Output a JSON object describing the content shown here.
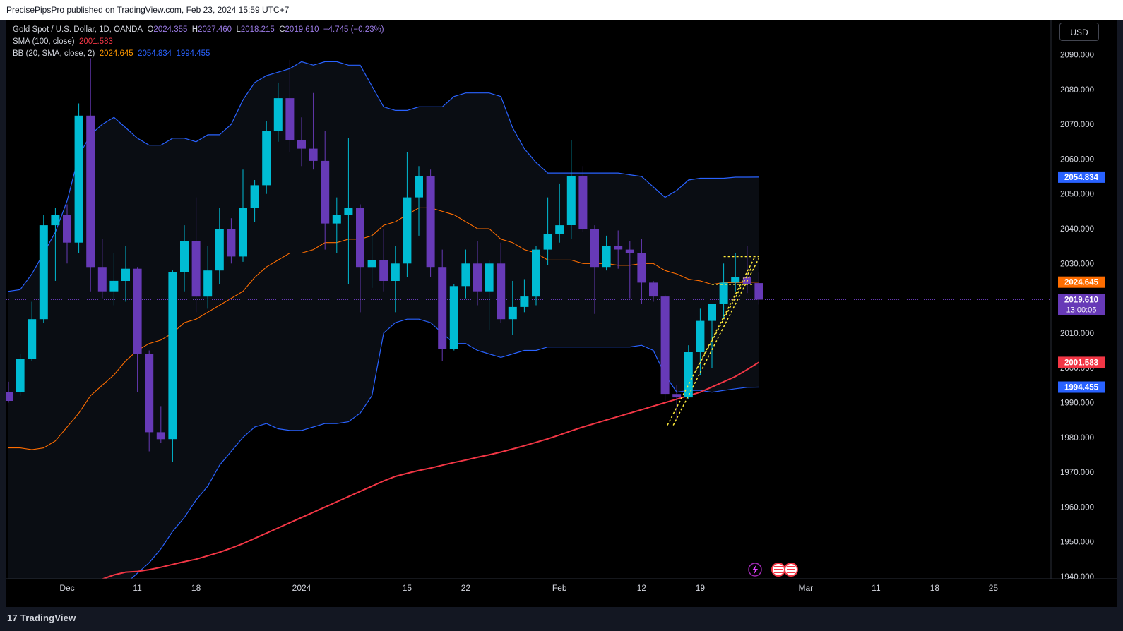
{
  "header": {
    "published": "PrecisePipsPro published on TradingView.com, Feb 23, 2024 15:59 UTC+7"
  },
  "legend": {
    "symbol": "Gold Spot / U.S. Dollar, 1D, OANDA",
    "open_label": "O",
    "open": "2024.355",
    "high_label": "H",
    "high": "2027.460",
    "low_label": "L",
    "low": "2018.215",
    "close_label": "C",
    "close": "2019.610",
    "change": "−4.745 (−0.23%)",
    "sma_label": "SMA (100, close)",
    "sma_value": "2001.583",
    "bb_label": "BB (20, SMA, close, 2)",
    "bb_basis": "2024.645",
    "bb_upper": "2054.834",
    "bb_lower": "1994.455"
  },
  "currency_button": "USD",
  "footer": {
    "brand": "TradingView",
    "logo_glyph": "17"
  },
  "colors": {
    "bull": "#00bcd4",
    "bear": "#673ab7",
    "bb_band": "#2962ff",
    "bb_basis": "#ff6d00",
    "sma": "#f23645",
    "pattern": "#ffeb3b",
    "background": "#000000",
    "axis_text": "#d1d4dc"
  },
  "chart_data": {
    "type": "candlestick",
    "title": "Gold Spot / U.S. Dollar, 1D, OANDA",
    "ylim": [
      1940,
      2096
    ],
    "y_ticks": [
      1940,
      1950,
      1960,
      1970,
      1980,
      1990,
      2000,
      2010,
      2020,
      2030,
      2040,
      2050,
      2060,
      2070,
      2080,
      2090
    ],
    "y_tick_labels": [
      "1940.000",
      "1950.000",
      "1960.000",
      "1970.000",
      "1980.000",
      "1990.000",
      "2000.000",
      "2010.000",
      "2020.000",
      "2030.000",
      "2040.000",
      "2050.000",
      "2060.000",
      "2070.000",
      "2080.000",
      "2090.000"
    ],
    "x_ticks": [
      {
        "label": "Dec",
        "index": 5
      },
      {
        "label": "11",
        "index": 11
      },
      {
        "label": "18",
        "index": 16
      },
      {
        "label": "2024",
        "index": 25
      },
      {
        "label": "15",
        "index": 34
      },
      {
        "label": "22",
        "index": 39
      },
      {
        "label": "Feb",
        "index": 47
      },
      {
        "label": "12",
        "index": 54
      },
      {
        "label": "19",
        "index": 59
      },
      {
        "label": "Mar",
        "index": 68
      },
      {
        "label": "11",
        "index": 74
      },
      {
        "label": "18",
        "index": 79
      },
      {
        "label": "25",
        "index": 84
      }
    ],
    "candles": [
      {
        "o": 1993.0,
        "h": 1996.0,
        "l": 1990.0,
        "c": 1990.5
      },
      {
        "o": 1993.0,
        "h": 2004.0,
        "l": 1992.0,
        "c": 2002.5
      },
      {
        "o": 2002.5,
        "h": 2019.0,
        "l": 2002.0,
        "c": 2014.0
      },
      {
        "o": 2014.0,
        "h": 2044.0,
        "l": 2013.0,
        "c": 2041.0
      },
      {
        "o": 2041.0,
        "h": 2046.0,
        "l": 2025.0,
        "c": 2044.0
      },
      {
        "o": 2044.0,
        "h": 2047.0,
        "l": 2030.0,
        "c": 2036.0
      },
      {
        "o": 2036.0,
        "h": 2076.0,
        "l": 2033.0,
        "c": 2072.5
      },
      {
        "o": 2072.5,
        "h": 2089.0,
        "l": 2022.0,
        "c": 2029.0
      },
      {
        "o": 2029.0,
        "h": 2037.0,
        "l": 2020.0,
        "c": 2022.0
      },
      {
        "o": 2022.0,
        "h": 2033.0,
        "l": 2018.0,
        "c": 2025.0
      },
      {
        "o": 2025.0,
        "h": 2035.0,
        "l": 2019.0,
        "c": 2028.5
      },
      {
        "o": 2028.5,
        "h": 2029.0,
        "l": 1993.0,
        "c": 2004.0
      },
      {
        "o": 2004.0,
        "h": 2005.0,
        "l": 1976.0,
        "c": 1981.5
      },
      {
        "o": 1981.5,
        "h": 1989.0,
        "l": 1978.5,
        "c": 1979.5
      },
      {
        "o": 1979.5,
        "h": 2028.0,
        "l": 1973.0,
        "c": 2027.5
      },
      {
        "o": 2027.5,
        "h": 2041.0,
        "l": 2022.0,
        "c": 2036.5
      },
      {
        "o": 2036.5,
        "h": 2049.0,
        "l": 2016.0,
        "c": 2020.5
      },
      {
        "o": 2020.5,
        "h": 2035.0,
        "l": 2017.0,
        "c": 2028.0
      },
      {
        "o": 2028.0,
        "h": 2046.0,
        "l": 2024.0,
        "c": 2040.0
      },
      {
        "o": 2040.0,
        "h": 2043.0,
        "l": 2030.0,
        "c": 2032.0
      },
      {
        "o": 2032.0,
        "h": 2057.0,
        "l": 2030.5,
        "c": 2046.0
      },
      {
        "o": 2046.0,
        "h": 2054.0,
        "l": 2042.0,
        "c": 2052.5
      },
      {
        "o": 2052.5,
        "h": 2071.0,
        "l": 2050.0,
        "c": 2068.0
      },
      {
        "o": 2068.0,
        "h": 2082.0,
        "l": 2065.0,
        "c": 2077.5
      },
      {
        "o": 2077.5,
        "h": 2088.5,
        "l": 2062.0,
        "c": 2065.5
      },
      {
        "o": 2065.5,
        "h": 2072.0,
        "l": 2058.0,
        "c": 2063.0
      },
      {
        "o": 2063.0,
        "h": 2079.0,
        "l": 2057.0,
        "c": 2059.5
      },
      {
        "o": 2059.5,
        "h": 2068.0,
        "l": 2034.0,
        "c": 2041.5
      },
      {
        "o": 2041.5,
        "h": 2049.0,
        "l": 2033.0,
        "c": 2044.0
      },
      {
        "o": 2044.0,
        "h": 2066.0,
        "l": 2024.0,
        "c": 2046.0
      },
      {
        "o": 2046.0,
        "h": 2047.0,
        "l": 2016.0,
        "c": 2029.0
      },
      {
        "o": 2029.0,
        "h": 2039.0,
        "l": 2023.0,
        "c": 2031.0
      },
      {
        "o": 2031.0,
        "h": 2040.0,
        "l": 2022.0,
        "c": 2025.0
      },
      {
        "o": 2025.0,
        "h": 2035.0,
        "l": 2016.0,
        "c": 2030.0
      },
      {
        "o": 2030.0,
        "h": 2062.0,
        "l": 2026.0,
        "c": 2049.0
      },
      {
        "o": 2049.0,
        "h": 2058.0,
        "l": 2038.0,
        "c": 2055.0
      },
      {
        "o": 2055.0,
        "h": 2057.0,
        "l": 2026.0,
        "c": 2029.0
      },
      {
        "o": 2029.0,
        "h": 2034.0,
        "l": 2002.0,
        "c": 2005.5
      },
      {
        "o": 2005.5,
        "h": 2024.0,
        "l": 2005.0,
        "c": 2023.5
      },
      {
        "o": 2023.5,
        "h": 2034.0,
        "l": 2020.0,
        "c": 2030.0
      },
      {
        "o": 2030.0,
        "h": 2036.5,
        "l": 2018.0,
        "c": 2022.0
      },
      {
        "o": 2022.0,
        "h": 2031.0,
        "l": 2011.0,
        "c": 2030.0
      },
      {
        "o": 2030.0,
        "h": 2036.0,
        "l": 2013.0,
        "c": 2014.0
      },
      {
        "o": 2014.0,
        "h": 2025.0,
        "l": 2009.5,
        "c": 2017.5
      },
      {
        "o": 2017.5,
        "h": 2025.5,
        "l": 2016.0,
        "c": 2020.5
      },
      {
        "o": 2020.5,
        "h": 2035.0,
        "l": 2018.0,
        "c": 2034.0
      },
      {
        "o": 2034.0,
        "h": 2049.0,
        "l": 2029.5,
        "c": 2038.5
      },
      {
        "o": 2038.5,
        "h": 2053.0,
        "l": 2036.0,
        "c": 2041.0
      },
      {
        "o": 2041.0,
        "h": 2065.5,
        "l": 2037.0,
        "c": 2055.0
      },
      {
        "o": 2055.0,
        "h": 2058.0,
        "l": 2039.0,
        "c": 2040.0
      },
      {
        "o": 2040.0,
        "h": 2041.0,
        "l": 2015.5,
        "c": 2029.0
      },
      {
        "o": 2029.0,
        "h": 2038.0,
        "l": 2028.0,
        "c": 2035.0
      },
      {
        "o": 2035.0,
        "h": 2039.5,
        "l": 2028.5,
        "c": 2034.0
      },
      {
        "o": 2034.0,
        "h": 2036.5,
        "l": 2020.0,
        "c": 2033.0
      },
      {
        "o": 2033.0,
        "h": 2037.0,
        "l": 2018.5,
        "c": 2024.5
      },
      {
        "o": 2024.5,
        "h": 2025.0,
        "l": 2019.0,
        "c": 2020.5
      },
      {
        "o": 2020.5,
        "h": 2021.0,
        "l": 1990.5,
        "c": 1992.5
      },
      {
        "o": 1992.5,
        "h": 1995.0,
        "l": 1985.0,
        "c": 1991.5
      },
      {
        "o": 1991.5,
        "h": 2006.5,
        "l": 1991.0,
        "c": 2004.5
      },
      {
        "o": 2004.5,
        "h": 2017.0,
        "l": 1998.0,
        "c": 2013.5
      },
      {
        "o": 2013.5,
        "h": 2018.5,
        "l": 2000.0,
        "c": 2018.5
      },
      {
        "o": 2018.5,
        "h": 2030.0,
        "l": 2014.0,
        "c": 2024.5
      },
      {
        "o": 2024.5,
        "h": 2033.0,
        "l": 2022.0,
        "c": 2026.0
      },
      {
        "o": 2026.0,
        "h": 2035.0,
        "l": 2021.5,
        "c": 2024.0
      },
      {
        "o": 2024.355,
        "h": 2027.46,
        "l": 2018.215,
        "c": 2019.61
      }
    ],
    "bb_upper": [
      2022,
      2022.5,
      2027,
      2033,
      2039,
      2048,
      2061,
      2067,
      2070,
      2072,
      2069,
      2066,
      2064,
      2064,
      2066,
      2066,
      2065,
      2067,
      2067,
      2070,
      2077,
      2082,
      2084,
      2085,
      2086,
      2088,
      2087,
      2088,
      2088,
      2087,
      2087,
      2081,
      2075,
      2074,
      2074,
      2075,
      2075,
      2075,
      2078,
      2079,
      2079,
      2079,
      2078,
      2069,
      2063,
      2059,
      2056,
      2056,
      2056,
      2056,
      2056,
      2056,
      2056,
      2055.5,
      2055,
      2052,
      2049,
      2051,
      2054,
      2054.5,
      2054.5,
      2054.5,
      2054.8,
      2054.8,
      2054.834
    ],
    "bb_lower": [
      1931,
      1931,
      1930.5,
      1931,
      1932,
      1932,
      1934,
      1935,
      1937,
      1937,
      1938,
      1941,
      1944,
      1948,
      1953,
      1957,
      1962,
      1966,
      1972,
      1976,
      1980,
      1983,
      1984,
      1982.5,
      1982,
      1982,
      1983,
      1984,
      1984,
      1984.5,
      1987,
      1992,
      2010,
      2013,
      2014,
      2014,
      2013,
      2010,
      2007,
      2007,
      2005,
      2004,
      2003,
      2004,
      2005,
      2005,
      2006,
      2006,
      2006,
      2006,
      2006,
      2006,
      2006,
      2006,
      2006.5,
      2005,
      1998,
      1993,
      1993.5,
      1993.5,
      1993,
      1993.5,
      1994,
      1994.4,
      1994.455
    ],
    "bb_basis": [
      1977,
      1977,
      1976.5,
      1977,
      1979,
      1983,
      1987,
      1992,
      1995,
      1998,
      2002,
      2005,
      2007,
      2008,
      2010,
      2013,
      2014,
      2016,
      2018,
      2020,
      2022,
      2026,
      2029,
      2031,
      2033,
      2033,
      2034,
      2036,
      2036,
      2037,
      2037,
      2038,
      2041,
      2042,
      2044,
      2046,
      2046,
      2045,
      2044,
      2042,
      2040,
      2040,
      2037,
      2036,
      2034,
      2033,
      2031,
      2031,
      2031,
      2030,
      2030,
      2030,
      2029.5,
      2029.5,
      2030,
      2030,
      2028,
      2027,
      2025.5,
      2025,
      2024,
      2024.5,
      2024.5,
      2024.6,
      2024.645
    ],
    "sma100": [
      1934,
      1934.5,
      1935,
      1935.5,
      1936,
      1936.8,
      1937.5,
      1938.2,
      1939.3,
      1940.5,
      1941.3,
      1941.5,
      1942,
      1942.7,
      1943.5,
      1944.3,
      1945,
      1946,
      1947,
      1948.2,
      1949.5,
      1951,
      1952.5,
      1954,
      1955.5,
      1957,
      1958.5,
      1960,
      1961.5,
      1963,
      1964.5,
      1966,
      1967.5,
      1968.8,
      1969.7,
      1970.5,
      1971.2,
      1972,
      1972.8,
      1973.5,
      1974.3,
      1975,
      1975.8,
      1976.7,
      1977.6,
      1978.6,
      1979.6,
      1980.7,
      1981.9,
      1983,
      1984,
      1985,
      1986,
      1987,
      1988,
      1989,
      1990,
      1991,
      1992,
      1993,
      1994.5,
      1996,
      1997.5,
      1999.5,
      2001.583
    ],
    "pattern_lines": [
      {
        "from": [
          56.2,
          1983.5
        ],
        "to": [
          63.6,
          2031.5
        ]
      },
      {
        "from": [
          56.7,
          1983.5
        ],
        "to": [
          64.0,
          2031.5
        ]
      },
      {
        "from": [
          58.6,
          1999
        ],
        "to": [
          63.4,
          2029
        ]
      },
      {
        "from": [
          61.0,
          2032
        ],
        "to": [
          64.0,
          2032
        ]
      },
      {
        "from": [
          60.0,
          2024
        ],
        "to": [
          63.6,
          2024
        ]
      }
    ],
    "price_labels": [
      {
        "value": 2054.834,
        "text": "2054.834",
        "color": "#2962ff"
      },
      {
        "value": 2024.645,
        "text": "2024.645",
        "color": "#ff6d00"
      },
      {
        "value": 2019.61,
        "text": "2019.610",
        "sub": "13:00:05",
        "color": "#673ab7"
      },
      {
        "value": 2001.583,
        "text": "2001.583",
        "color": "#f23645"
      },
      {
        "value": 1994.455,
        "text": "1994.455",
        "color": "#2962ff"
      }
    ],
    "event_icons": [
      "lightning-icon",
      "us-flag-icon",
      "us-flag-icon"
    ]
  }
}
